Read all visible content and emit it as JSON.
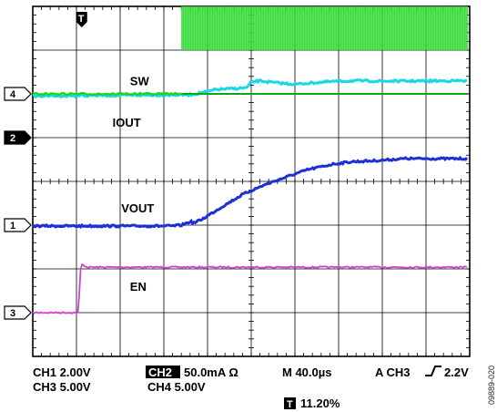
{
  "figure_id": "09889-020",
  "chart_data": {
    "type": "line",
    "grid": {
      "divisions_x": 10,
      "divisions_y": 8,
      "minor_ticks_per_division": 5
    },
    "trigger_marker": "T",
    "channels": [
      {
        "marker": "4",
        "label": "SW",
        "color": "#19d619",
        "filled_marker": false
      },
      {
        "marker": "2",
        "label": "IOUT",
        "color": "#18d7e6",
        "filled_marker": true
      },
      {
        "marker": "1",
        "label": "VOUT",
        "color": "#1f2fd6",
        "filled_marker": false
      },
      {
        "marker": "3",
        "label": "EN",
        "color": "#d23fd2",
        "filled_marker": false
      }
    ],
    "series": [
      {
        "name": "EN",
        "x_div": [
          0,
          1.05,
          1.08,
          1.12,
          1.25,
          10
        ],
        "y_div": [
          -3.0,
          -3.0,
          -2.1,
          -1.9,
          -1.96,
          -1.96
        ]
      },
      {
        "name": "VOUT",
        "x_div": [
          0,
          3.2,
          3.4,
          3.6,
          3.7,
          3.9,
          4.3,
          4.8,
          5.3,
          5.8,
          6.3,
          6.9,
          7.3,
          7.8,
          8.5,
          10
        ],
        "y_div": [
          -1.02,
          -1.02,
          -1.0,
          -0.92,
          -0.95,
          -0.85,
          -0.6,
          -0.3,
          -0.08,
          0.1,
          0.27,
          0.4,
          0.45,
          0.47,
          0.52,
          0.52
        ]
      },
      {
        "name": "IOUT",
        "x_div": [
          0,
          3.6,
          3.9,
          4.2,
          4.6,
          4.9,
          5.0,
          5.2,
          5.5,
          6.0,
          6.5,
          7.0,
          7.5,
          8.0,
          10
        ],
        "y_div": [
          1.95,
          1.98,
          2.03,
          2.1,
          2.12,
          2.14,
          2.27,
          2.3,
          2.26,
          2.22,
          2.26,
          2.29,
          2.3,
          2.29,
          2.3
        ]
      },
      {
        "name": "SW",
        "x_div": [
          0,
          10
        ],
        "y_div": [
          2.0,
          2.0
        ],
        "switching_start_div": 3.4,
        "switching_high_div": 4.0,
        "switching_low_div": 3.0
      }
    ],
    "readouts": {
      "ch1": "CH1 2.00V",
      "ch3": "CH3 5.00V",
      "ch2_box": "CH2",
      "ch2_rest": "50.0mA Ω",
      "ch4": "CH4 5.00V",
      "timebase": "M 40.0µs",
      "trigger": "A CH3",
      "trigger_level": "2.2V",
      "t_box": "T",
      "t_pos": "11.20%"
    }
  }
}
